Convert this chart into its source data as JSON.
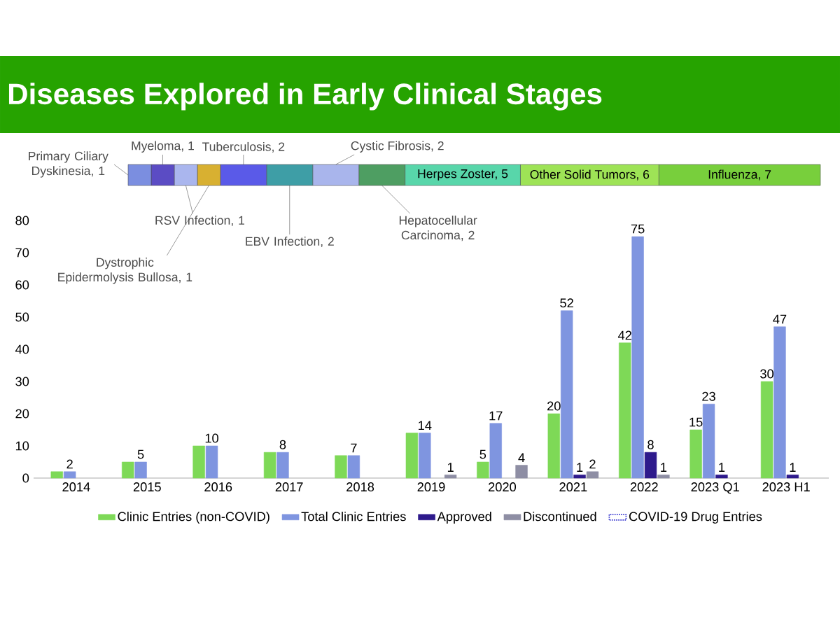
{
  "chart_data": [
    {
      "type": "bar",
      "title": "Diseases Explored in Early Clinical Stages",
      "orientation": "horizontal",
      "stacked": true,
      "categories": [
        null
      ],
      "series": [
        {
          "color": "#7b8ee0",
          "values": [
            1
          ],
          "value_labels": [
            "Primary Ciliary Dyskinesia, 1"
          ]
        },
        {
          "color": "#5b4cc4",
          "values": [
            1
          ],
          "value_labels": [
            "Myeloma, 1"
          ]
        },
        {
          "color": "#aab6ee",
          "values": [
            1
          ],
          "value_labels": [
            "RSV Infection, 1"
          ]
        },
        {
          "color": "#d8b031",
          "values": [
            1
          ],
          "value_labels": [
            "Dystrophic Epidermolysis Bullosa, 1"
          ]
        },
        {
          "color": "#5a5ae8",
          "values": [
            2
          ],
          "value_labels": [
            "Tuberculosis, 2"
          ]
        },
        {
          "color": "#3e9ea6",
          "values": [
            2
          ],
          "value_labels": [
            "EBV Infection, 2"
          ]
        },
        {
          "color": "#a9b5ec",
          "values": [
            2
          ],
          "value_labels": [
            "Cystic Fibrosis, 2"
          ]
        },
        {
          "color": "#4e9e62",
          "values": [
            2
          ],
          "value_labels": [
            "Hepatocellular Carcinoma, 2"
          ]
        },
        {
          "color": "#58d6aa",
          "values": [
            5
          ],
          "value_labels": [
            "Herpes Zoster, 5"
          ]
        },
        {
          "color": "#9ee356",
          "values": [
            6
          ],
          "value_labels": [
            "Other Solid Tumors, 6"
          ]
        },
        {
          "color": "#78cf3c",
          "values": [
            7
          ],
          "value_labels": [
            "Influenza, 7"
          ]
        }
      ]
    },
    {
      "type": "bar",
      "categories": [
        "2014",
        "2015",
        "2016",
        "2017",
        "2018",
        "2019",
        "2020",
        "2021",
        "2022",
        "2023 Q1",
        "2023 H1"
      ],
      "ylim": [
        0,
        80
      ],
      "yticks": [
        0,
        10,
        20,
        30,
        40,
        50,
        60,
        70,
        80
      ],
      "legend": "bottom",
      "series": [
        {
          "name": "Clinic Entries (non-COVID)",
          "color": "#7ed957",
          "values": [
            2,
            5,
            10,
            8,
            7,
            14,
            5,
            20,
            42,
            15,
            30
          ],
          "value_labels": [
            null,
            null,
            null,
            null,
            null,
            null,
            "5",
            "20",
            "42",
            "15",
            "30"
          ]
        },
        {
          "name": "Total Clinic Entries",
          "color": "#7f95e0",
          "values": [
            2,
            5,
            10,
            8,
            7,
            14,
            17,
            52,
            75,
            23,
            47
          ],
          "value_labels": [
            "2",
            "5",
            "10",
            "8",
            "7",
            "14",
            "17",
            "52",
            "75",
            "23",
            "47"
          ]
        },
        {
          "name": "Approved",
          "color": "#2e1a8c",
          "values": [
            null,
            null,
            null,
            null,
            null,
            null,
            null,
            1,
            8,
            1,
            1
          ],
          "value_labels": [
            null,
            null,
            null,
            null,
            null,
            null,
            null,
            "1",
            "8",
            "1",
            "1"
          ]
        },
        {
          "name": "Discontinued",
          "color": "#8e8ea4",
          "values": [
            null,
            null,
            null,
            null,
            null,
            1,
            4,
            2,
            1,
            null,
            null
          ],
          "value_labels": [
            null,
            null,
            null,
            null,
            null,
            "1",
            "4",
            "2",
            "1",
            null,
            null
          ]
        },
        {
          "name": "COVID-19 Drug Entries",
          "color": "#3a3ad0",
          "values": [
            null,
            null,
            null,
            null,
            null,
            null,
            null,
            null,
            null,
            null,
            null
          ]
        }
      ]
    }
  ]
}
